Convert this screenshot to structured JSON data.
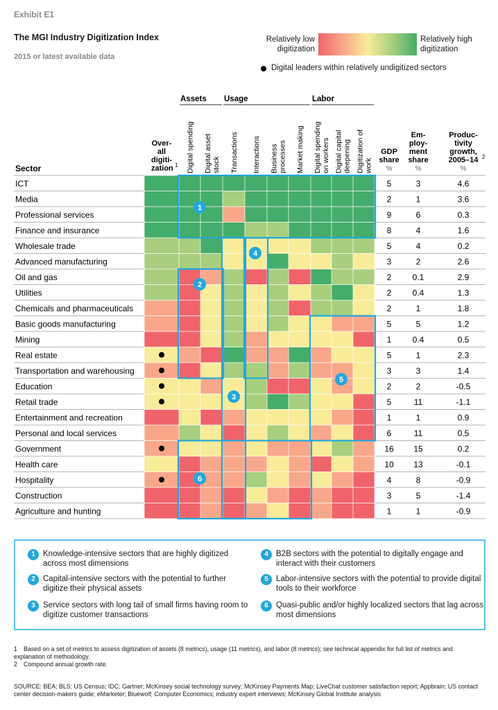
{
  "header": {
    "exhibit": "Exhibit E1",
    "title": "The MGI Industry Digitization Index",
    "subtitle": "2015 or latest available data"
  },
  "legend": {
    "low_label": "Relatively low digitization",
    "high_label": "Relatively high digitization",
    "leader_label": "Digital leaders within relatively undigitized sectors",
    "colors": [
      "#f1636b",
      "#f8a78a",
      "#f9ec98",
      "#a7cf7d",
      "#45ad6b"
    ]
  },
  "chart_data": {
    "type": "heatmap",
    "title": "The MGI Industry Digitization Index",
    "subtitle": "2015 or latest available data",
    "scale": "1 = relatively low digitization, 5 = relatively high digitization",
    "row_header": "Sector",
    "groups": [
      {
        "name": "",
        "columns": [
          "Over-all digiti-zation"
        ]
      },
      {
        "name": "Assets",
        "columns": [
          "Digital spending",
          "Digital asset stock"
        ]
      },
      {
        "name": "Usage",
        "columns": [
          "Transactions",
          "Interactions",
          "Business processes",
          "Market making"
        ]
      },
      {
        "name": "Labor",
        "columns": [
          "Digital spending on workers",
          "Digital capital deepening",
          "Digitization of work"
        ]
      }
    ],
    "columns": [
      "Over-all digiti-zation",
      "Digital spending",
      "Digital asset stock",
      "Transactions",
      "Interactions",
      "Business processes",
      "Market making",
      "Digital spending on workers",
      "Digital capital deepening",
      "Digitization of work"
    ],
    "overall_footnote": "1",
    "stat_columns": [
      {
        "label": "GDP share",
        "unit": "%"
      },
      {
        "label": "Em-ploy-ment share",
        "unit": "%"
      },
      {
        "label": "Produc-tivity growth, 2005–14",
        "footnote": "2",
        "unit": "%"
      }
    ],
    "rows": [
      {
        "sector": "ICT",
        "leader": false,
        "cells": [
          5,
          5,
          5,
          5,
          5,
          5,
          5,
          5,
          5,
          5
        ],
        "gdp": "5",
        "emp": "3",
        "prod": "4.6"
      },
      {
        "sector": "Media",
        "leader": false,
        "cells": [
          5,
          5,
          5,
          4,
          5,
          5,
          5,
          5,
          5,
          5
        ],
        "gdp": "2",
        "emp": "1",
        "prod": "3.6"
      },
      {
        "sector": "Professional services",
        "leader": false,
        "cells": [
          5,
          5,
          5,
          2,
          5,
          5,
          5,
          5,
          5,
          5
        ],
        "gdp": "9",
        "emp": "6",
        "prod": "0.3"
      },
      {
        "sector": "Finance and insurance",
        "leader": false,
        "cells": [
          5,
          5,
          5,
          5,
          4,
          4,
          5,
          5,
          5,
          5
        ],
        "gdp": "8",
        "emp": "4",
        "prod": "1.6"
      },
      {
        "sector": "Wholesale trade",
        "leader": false,
        "cells": [
          4,
          4,
          5,
          3,
          3,
          3,
          3,
          4,
          4,
          4
        ],
        "gdp": "5",
        "emp": "4",
        "prod": "0.2"
      },
      {
        "sector": "Advanced manufacturing",
        "leader": false,
        "cells": [
          4,
          4,
          4,
          3,
          3,
          5,
          3,
          3,
          4,
          3
        ],
        "gdp": "3",
        "emp": "2",
        "prod": "2.6"
      },
      {
        "sector": "Oil and gas",
        "leader": false,
        "cells": [
          4,
          1,
          2,
          4,
          1,
          4,
          1,
          5,
          4,
          4
        ],
        "gdp": "2",
        "emp": "0.1",
        "prod": "2.9"
      },
      {
        "sector": "Utilities",
        "leader": false,
        "cells": [
          4,
          1,
          3,
          4,
          3,
          4,
          3,
          4,
          5,
          3
        ],
        "gdp": "2",
        "emp": "0.4",
        "prod": "1.3"
      },
      {
        "sector": "Chemicals and pharmaceuticals",
        "leader": false,
        "cells": [
          2,
          1,
          3,
          4,
          3,
          4,
          1,
          4,
          4,
          3
        ],
        "gdp": "2",
        "emp": "1",
        "prod": "1.8"
      },
      {
        "sector": "Basic goods manufacturing",
        "leader": false,
        "cells": [
          2,
          1,
          3,
          4,
          3,
          4,
          3,
          3,
          2,
          2
        ],
        "gdp": "5",
        "emp": "5",
        "prod": "1.2"
      },
      {
        "sector": "Mining",
        "leader": false,
        "cells": [
          1,
          1,
          3,
          4,
          2,
          3,
          3,
          3,
          3,
          1
        ],
        "gdp": "1",
        "emp": "0.4",
        "prod": "0.5"
      },
      {
        "sector": "Real estate",
        "leader": true,
        "cells": [
          3,
          2,
          1,
          5,
          2,
          2,
          5,
          2,
          3,
          3
        ],
        "gdp": "5",
        "emp": "1",
        "prod": "2.3"
      },
      {
        "sector": "Transportation and warehousing",
        "leader": true,
        "cells": [
          2,
          1,
          3,
          4,
          4,
          2,
          4,
          2,
          2,
          3
        ],
        "gdp": "3",
        "emp": "3",
        "prod": "1.4"
      },
      {
        "sector": "Education",
        "leader": true,
        "cells": [
          3,
          3,
          2,
          3,
          4,
          1,
          1,
          3,
          2,
          3
        ],
        "gdp": "2",
        "emp": "2",
        "prod": "-0.5"
      },
      {
        "sector": "Retail trade",
        "leader": true,
        "cells": [
          3,
          3,
          3,
          3,
          4,
          5,
          4,
          3,
          3,
          1
        ],
        "gdp": "5",
        "emp": "11",
        "prod": "-1.1"
      },
      {
        "sector": "Entertainment and recreation",
        "leader": false,
        "cells": [
          1,
          3,
          1,
          2,
          3,
          3,
          3,
          3,
          2,
          1
        ],
        "gdp": "1",
        "emp": "1",
        "prod": "0.9"
      },
      {
        "sector": "Personal and local services",
        "leader": false,
        "cells": [
          2,
          4,
          3,
          1,
          3,
          4,
          3,
          2,
          3,
          1
        ],
        "gdp": "6",
        "emp": "11",
        "prod": "0.5"
      },
      {
        "sector": "Government",
        "leader": true,
        "cells": [
          2,
          3,
          3,
          2,
          3,
          2,
          2,
          3,
          4,
          2
        ],
        "gdp": "16",
        "emp": "15",
        "prod": "0.2"
      },
      {
        "sector": "Health care",
        "leader": false,
        "cells": [
          3,
          1,
          2,
          2,
          2,
          3,
          2,
          1,
          3,
          2
        ],
        "gdp": "10",
        "emp": "13",
        "prod": "-0.1"
      },
      {
        "sector": "Hospitality",
        "leader": true,
        "cells": [
          2,
          1,
          2,
          2,
          4,
          3,
          2,
          3,
          2,
          1
        ],
        "gdp": "4",
        "emp": "8",
        "prod": "-0.9"
      },
      {
        "sector": "Construction",
        "leader": false,
        "cells": [
          1,
          1,
          2,
          1,
          3,
          2,
          1,
          2,
          1,
          1
        ],
        "gdp": "3",
        "emp": "5",
        "prod": "-1.4"
      },
      {
        "sector": "Agriculture and hunting",
        "leader": false,
        "cells": [
          1,
          1,
          2,
          1,
          2,
          3,
          1,
          2,
          1,
          1
        ],
        "gdp": "1",
        "emp": "1",
        "prod": "-0.9"
      }
    ],
    "clusters": [
      {
        "id": "1",
        "label": "Knowledge-intensive sectors that are highly digitized across most dimensions"
      },
      {
        "id": "2",
        "label": "Capital-intensive sectors with the potential to further digitize their physical assets"
      },
      {
        "id": "3",
        "label": "Service sectors with long tail of small firms having room to digitize customer transactions"
      },
      {
        "id": "4",
        "label": "B2B sectors with the potential to digitally engage and interact with their customers"
      },
      {
        "id": "5",
        "label": "Labor-intensive sectors with the potential to provide digital tools to their workforce"
      },
      {
        "id": "6",
        "label": "Quasi-public and/or highly localized sectors that lag across most dimensions"
      }
    ]
  },
  "footnotes": [
    {
      "n": "1",
      "text": "Based on a set of metrics to assess digitization of assets (8 metrics), usage (11 metrics), and labor (8 metrics); see technical appendix for full list of metrics and explanation of methodology."
    },
    {
      "n": "2",
      "text": "Compound annual growth rate."
    }
  ],
  "source": "SOURCE: BEA; BLS; US Census; IDC; Gartner; McKinsey social technology survey; McKinsey Payments Map; LiveChat customer satisfaction report; Appbrain; US contact center decision-makers guide; eMarketer; Bluewolf; Computer Economics; industry expert interviews; McKinsey Global Institute analysis"
}
